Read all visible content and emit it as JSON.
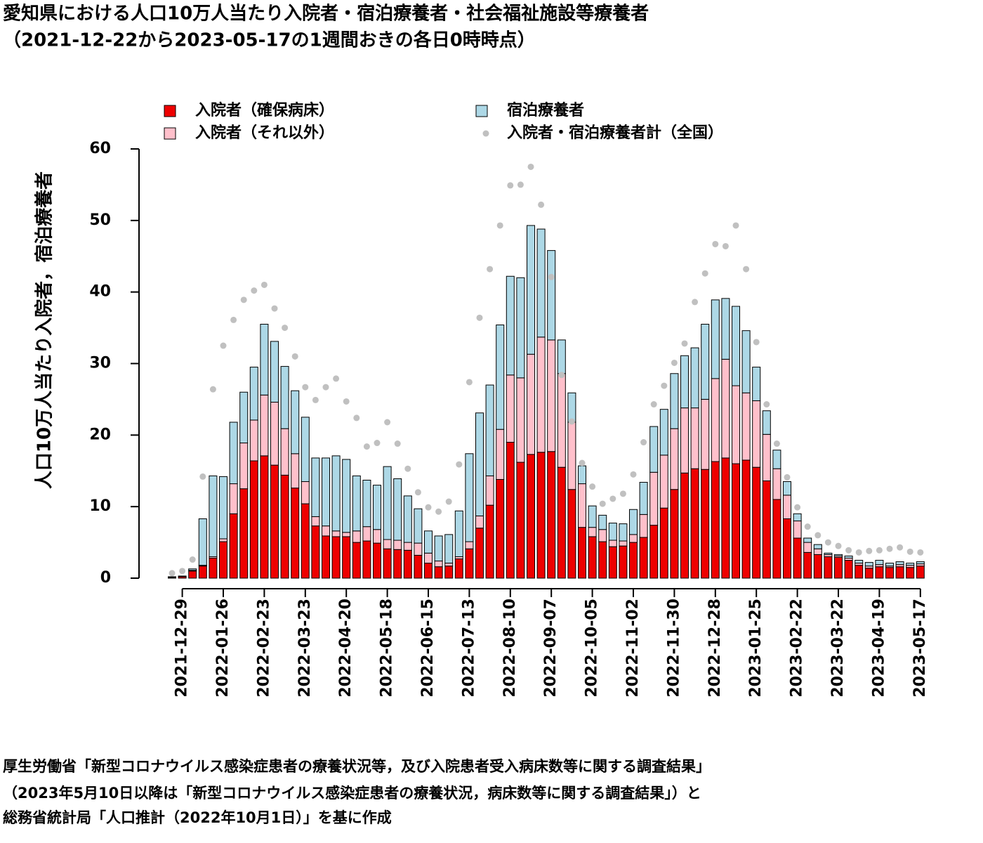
{
  "chart_data": {
    "type": "bar",
    "stacked": true,
    "title": "愛知県における人口10万人当たり入院者・宿泊療養者・社会福祉施設等療養者",
    "subtitle": "（2021-12-22から2023-05-17の1週間おきの各日0時時点）",
    "ylabel": "人口10万人当たり入院者，宿泊療養者",
    "notes": [
      "厚生労働省「新型コロナウイルス感染症患者の療養状況等，及び入院患者受入病床数等に関する調査結果」",
      "（2023年5月10日以降は「新型コロナウイルス感染症患者の療養状況，病床数等に関する調査結果」）と",
      "総務省統計局「人口推計（2022年10月1日）」を基に作成"
    ],
    "ylim": [
      0,
      60
    ],
    "yticks": [
      0,
      10,
      20,
      30,
      40,
      50,
      60
    ],
    "categories": [
      null,
      "2021-12-29",
      null,
      null,
      null,
      "2022-01-26",
      null,
      null,
      null,
      "2022-02-23",
      null,
      null,
      null,
      "2022-03-23",
      null,
      null,
      null,
      "2022-04-20",
      null,
      null,
      null,
      "2022-05-18",
      null,
      null,
      null,
      "2022-06-15",
      null,
      null,
      null,
      "2022-07-13",
      null,
      null,
      null,
      "2022-08-10",
      null,
      null,
      null,
      "2022-09-07",
      null,
      null,
      null,
      "2022-10-05",
      null,
      null,
      null,
      "2022-11-02",
      null,
      null,
      null,
      "2022-11-30",
      null,
      null,
      null,
      "2022-12-28",
      null,
      null,
      null,
      "2023-01-25",
      null,
      null,
      null,
      "2023-02-22",
      null,
      null,
      null,
      "2023-03-22",
      null,
      null,
      null,
      "2023-04-19",
      null,
      null,
      null,
      "2023-05-17"
    ],
    "series": [
      {
        "name": "入院者（確保病床）",
        "color": "#ee0000",
        "values": [
          0.1,
          0.2,
          1.0,
          1.7,
          2.8,
          5.1,
          9.0,
          12.5,
          16.4,
          17.1,
          15.8,
          14.4,
          12.6,
          10.4,
          7.3,
          5.9,
          5.8,
          5.8,
          5.0,
          5.2,
          4.9,
          4.1,
          4.0,
          3.9,
          3.2,
          2.1,
          1.6,
          1.7,
          2.7,
          4.1,
          7.0,
          10.2,
          13.8,
          19.0,
          16.2,
          17.3,
          17.6,
          17.7,
          15.5,
          12.4,
          7.1,
          5.8,
          5.1,
          4.4,
          4.5,
          5.0,
          5.7,
          7.4,
          9.8,
          12.4,
          14.7,
          15.3,
          15.2,
          16.3,
          16.8,
          16.0,
          16.5,
          15.5,
          13.6,
          11.0,
          8.3,
          5.6,
          3.6,
          3.3,
          3.0,
          2.9,
          2.5,
          1.8,
          1.4,
          1.6,
          1.5,
          1.6,
          1.5,
          1.7
        ]
      },
      {
        "name": "入院者（それ以外）",
        "color": "#ffc0cb",
        "values": [
          0,
          0,
          0.1,
          0.1,
          0.2,
          0.4,
          4.2,
          6.4,
          5.7,
          8.5,
          8.8,
          6.5,
          4.8,
          3.1,
          1.3,
          1.4,
          0.8,
          0.6,
          1.6,
          2.0,
          1.9,
          1.3,
          1.3,
          1.1,
          1.7,
          1.4,
          0.8,
          0.4,
          0.3,
          1.0,
          1.7,
          4.1,
          7.0,
          9.4,
          11.8,
          14.0,
          16.1,
          15.6,
          13.1,
          9.4,
          6.1,
          1.3,
          1.7,
          0.9,
          0.7,
          1.1,
          3.2,
          7.4,
          7.4,
          8.5,
          9.1,
          8.5,
          9.8,
          11.6,
          13.8,
          10.9,
          9.4,
          9.3,
          6.5,
          4.3,
          3.3,
          2.4,
          1.4,
          0.8,
          0.3,
          0.2,
          0.3,
          0.3,
          0.3,
          0.3,
          0.2,
          0.3,
          0.3,
          0.3
        ]
      },
      {
        "name": "宿泊療養者",
        "color": "#add8e6",
        "values": [
          0.1,
          0.1,
          0.2,
          6.5,
          11.3,
          8.7,
          8.6,
          7.1,
          7.4,
          9.9,
          8.5,
          8.7,
          8.8,
          9.0,
          8.2,
          9.5,
          10.5,
          10.2,
          7.7,
          6.5,
          6.2,
          10.2,
          8.6,
          6.5,
          4.8,
          3.1,
          3.5,
          4.0,
          6.4,
          12.3,
          14.4,
          12.7,
          14.6,
          13.8,
          14.0,
          18.0,
          15.1,
          12.5,
          4.7,
          4.1,
          2.5,
          3.0,
          2.0,
          2.4,
          2.4,
          3.5,
          4.5,
          6.4,
          6.4,
          7.7,
          7.3,
          8.4,
          10.5,
          11.0,
          8.5,
          11.1,
          8.7,
          4.7,
          3.3,
          2.6,
          1.9,
          1.0,
          0.6,
          0.6,
          0.2,
          0.2,
          0.3,
          0.4,
          0.5,
          0.6,
          0.4,
          0.4,
          0.3,
          0.3
        ]
      },
      {
        "name": "入院者・宿泊療養者計（全国）",
        "type": "scatter",
        "color": "#c0c0c0",
        "values": [
          0.7,
          1.0,
          2.6,
          14.2,
          26.4,
          32.5,
          36.1,
          38.9,
          40.2,
          41.0,
          37.7,
          35.0,
          31.0,
          26.7,
          24.9,
          26.7,
          27.9,
          24.7,
          22.4,
          18.4,
          18.9,
          21.8,
          18.8,
          15.3,
          12.0,
          9.9,
          9.3,
          10.7,
          15.9,
          27.4,
          36.4,
          43.2,
          49.3,
          54.9,
          55.0,
          57.5,
          52.2,
          42.1,
          28.4,
          21.9,
          16.1,
          12.8,
          10.4,
          11.1,
          11.8,
          14.5,
          19.0,
          24.3,
          26.9,
          30.1,
          32.8,
          38.6,
          42.6,
          46.7,
          46.4,
          49.3,
          43.2,
          33.0,
          24.3,
          18.8,
          14.1,
          9.9,
          7.2,
          6.0,
          5.0,
          4.5,
          3.9,
          3.6,
          3.8,
          3.9,
          4.1,
          4.3,
          3.7,
          3.6
        ]
      }
    ]
  }
}
